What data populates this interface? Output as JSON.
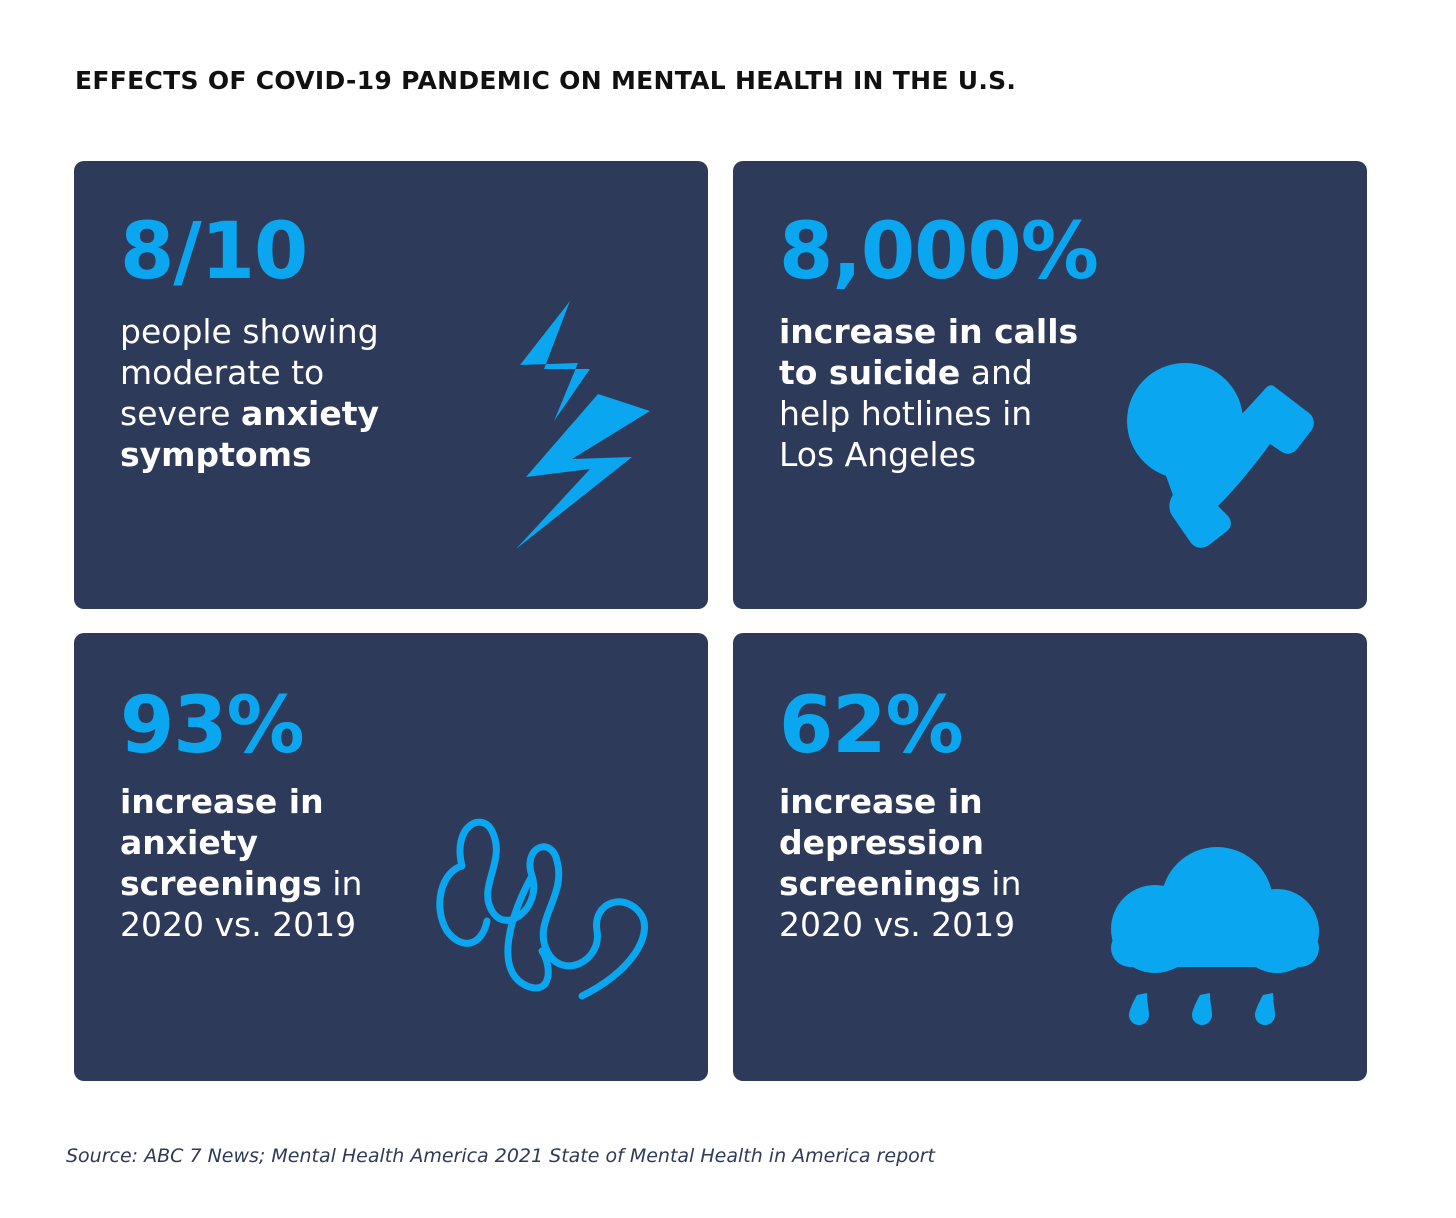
{
  "title": "EFFECTS OF COVID-19 PANDEMIC ON MENTAL HEALTH IN THE U.S.",
  "colors": {
    "card_bg": "#2e3a59",
    "accent": "#0aa6ef",
    "text": "#ffffff"
  },
  "cards": [
    {
      "stat": "8/10",
      "lines": [
        [
          "people showing"
        ],
        [
          "moderate to"
        ],
        [
          "severe ",
          "anxiety"
        ],
        [
          "symptoms"
        ]
      ],
      "icon": "lightning-bolt-icon"
    },
    {
      "stat": "8,000%",
      "lines": [
        [
          "increase in calls"
        ],
        [
          "to suicide",
          " and"
        ],
        [
          "help hotlines in"
        ],
        [
          "Los Angeles"
        ]
      ],
      "icon": "speech-bubble-phone-icon"
    },
    {
      "stat": "93%",
      "lines": [
        [
          "increase in"
        ],
        [
          "anxiety"
        ],
        [
          "screenings",
          " in"
        ],
        [
          "2020 vs. 2019"
        ]
      ],
      "icon": "squiggle-icon"
    },
    {
      "stat": "62%",
      "lines": [
        [
          "increase in"
        ],
        [
          "depression"
        ],
        [
          "screenings",
          " in"
        ],
        [
          "2020 vs. 2019"
        ]
      ],
      "icon": "rain-cloud-icon"
    }
  ],
  "source": "Source: ABC 7 News; Mental Health America 2021 State of Mental Health in America report"
}
